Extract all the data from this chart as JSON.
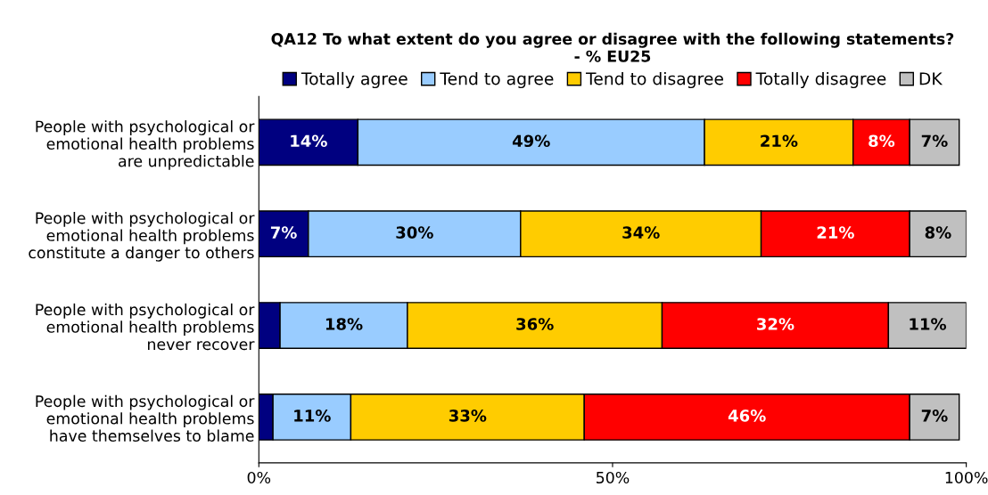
{
  "chart_data": {
    "type": "bar",
    "orientation": "horizontal",
    "stacked": true,
    "title": "QA12 To what extent do you agree or disagree with the following statements?\n- % EU25",
    "categories": [
      "People with psychological or\nemotional health problems\nare unpredictable",
      "People with psychological or\nemotional health problems\nconstitute a danger to others",
      "People with psychological or\nemotional health problems\nnever recover",
      "People with psychological or\nemotional health problems\nhave themselves to blame"
    ],
    "series": [
      {
        "name": "Totally agree",
        "color": "#000080",
        "values": [
          14,
          7,
          3,
          2
        ],
        "value_labels": [
          "14%",
          "7%",
          null,
          null
        ]
      },
      {
        "name": "Tend to agree",
        "color": "#99ccff",
        "values": [
          49,
          30,
          18,
          11
        ],
        "value_labels": [
          "49%",
          "30%",
          "18%",
          "11%"
        ]
      },
      {
        "name": "Tend to disagree",
        "color": "#ffcc00",
        "values": [
          21,
          34,
          36,
          33
        ],
        "value_labels": [
          "21%",
          "34%",
          "36%",
          "33%"
        ]
      },
      {
        "name": "Totally disagree",
        "color": "#ff0000",
        "values": [
          8,
          21,
          32,
          46
        ],
        "value_labels": [
          "8%",
          "21%",
          "32%",
          "46%"
        ]
      },
      {
        "name": "DK",
        "color": "#c0c0c0",
        "values": [
          7,
          8,
          11,
          7
        ],
        "value_labels": [
          "7%",
          "8%",
          "11%",
          "7%"
        ]
      }
    ],
    "xlim": [
      0,
      100
    ],
    "xticks": [
      {
        "value": 0,
        "label": "0%"
      },
      {
        "value": 50,
        "label": "50%"
      },
      {
        "value": 100,
        "label": "100%"
      }
    ],
    "grid": false,
    "legend": "top"
  }
}
